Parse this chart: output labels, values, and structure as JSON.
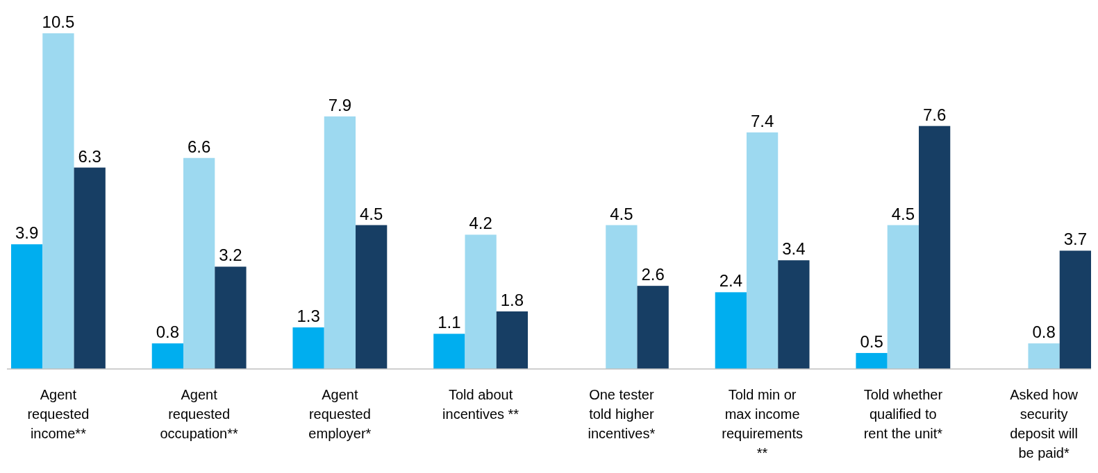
{
  "chart_data": {
    "type": "bar",
    "categories": [
      "Agent requested income**",
      "Agent requested occupation**",
      "Agent requested employer*",
      "Told about incentives **",
      "One tester told higher incentives*",
      "Told min or max income requirements **",
      "Told whether qualified to rent the unit*",
      "Asked how security deposit will be paid*"
    ],
    "series": [
      {
        "color": "#00aeef",
        "values": [
          3.9,
          0.8,
          1.3,
          1.1,
          null,
          2.4,
          0.5,
          null
        ]
      },
      {
        "color": "#9dd9f0",
        "values": [
          10.5,
          6.6,
          7.9,
          4.2,
          4.5,
          7.4,
          4.5,
          0.8
        ]
      },
      {
        "color": "#173e64",
        "values": [
          6.3,
          3.2,
          4.5,
          1.8,
          2.6,
          3.4,
          7.6,
          3.7
        ]
      }
    ],
    "data_labels": true
  }
}
